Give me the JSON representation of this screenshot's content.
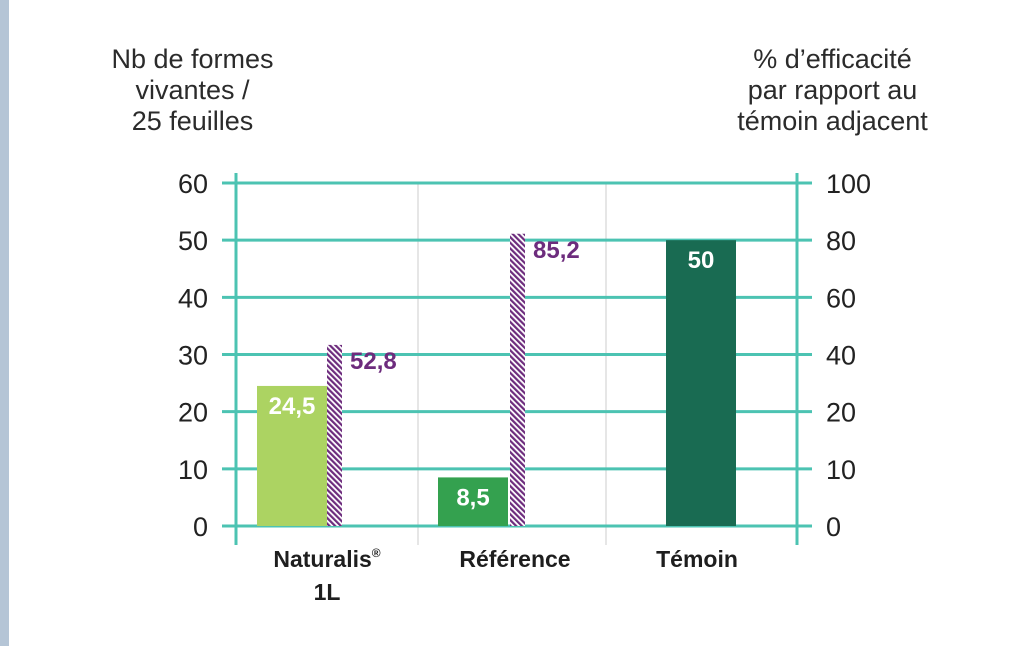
{
  "chart_data": {
    "type": "bar",
    "left_axis_title": "Nb de formes\nvivantes /\n25 feuilles",
    "right_axis_title": "% d’efficacité\npar rapport au\ntémoin adjacent",
    "left_ylim": [
      0,
      60
    ],
    "left_ticks": [
      "0",
      "10",
      "20",
      "30",
      "40",
      "50",
      "60"
    ],
    "right_ylim": [
      0,
      100
    ],
    "right_ticks": [
      "0",
      "10",
      "20",
      "40",
      "60",
      "80",
      "100"
    ],
    "categories": [
      {
        "label": "Naturalis",
        "sup": "®",
        "line2": "1L"
      },
      {
        "label": "Référence",
        "sup": "",
        "line2": ""
      },
      {
        "label": "Témoin",
        "sup": "",
        "line2": ""
      }
    ],
    "series": [
      {
        "axis": "left",
        "values": [
          24.5,
          8.5,
          50
        ],
        "labels": [
          "24,5",
          "8,5",
          "50"
        ],
        "colors": [
          "#acd362",
          "#34a14f",
          "#196b52"
        ]
      },
      {
        "axis": "right",
        "values": [
          52.8,
          85.2,
          null
        ],
        "labels": [
          "52,8",
          "85,2",
          ""
        ],
        "colors": [
          "#6d2c7d",
          "#6d2c7d",
          "#6d2c7d"
        ]
      }
    ],
    "grid": true,
    "grid_color": "#4cc3b2"
  }
}
